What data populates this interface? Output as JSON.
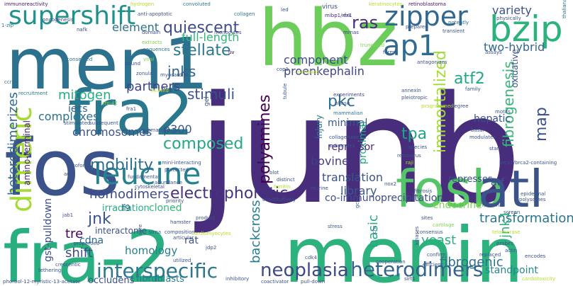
{
  "words": [
    {
      "text": "junb",
      "color": "#472d7b"
    },
    {
      "text": "fra-2",
      "color": "#29af7f"
    },
    {
      "text": "menin",
      "color": "#2db27d"
    },
    {
      "text": "hbz",
      "color": "#6ccd5a"
    },
    {
      "text": "men1",
      "color": "#2c728e"
    },
    {
      "text": "fos",
      "color": "#3b528b"
    },
    {
      "text": "fra2",
      "color": "#2a788e"
    },
    {
      "text": "fosb",
      "color": "#54c568"
    },
    {
      "text": "atl",
      "color": "#3b528b"
    },
    {
      "text": "bzip",
      "color": "#2db27d"
    },
    {
      "text": "zipper",
      "color": "#31688e"
    },
    {
      "text": "supershift",
      "color": "#21918c"
    },
    {
      "text": "dimeric",
      "color": "#a5db36"
    },
    {
      "text": "leucine",
      "color": "#26828e"
    },
    {
      "text": "ap1",
      "color": "#306a8e"
    },
    {
      "text": "heterodimers",
      "color": "#33638d"
    },
    {
      "text": "interspecific",
      "color": "#2a788e"
    },
    {
      "text": "neoplasia",
      "color": "#3e4989"
    },
    {
      "text": "quiescent",
      "color": "#3e4a89"
    },
    {
      "text": "stellate",
      "color": "#2a788e"
    },
    {
      "text": "ras",
      "color": "#472a7a"
    },
    {
      "text": "polyamines",
      "color": "#440154"
    },
    {
      "text": "heterodimerizes",
      "color": "#31688e"
    },
    {
      "text": "fibrogenesis",
      "color": "#37b878"
    },
    {
      "text": "immortalized",
      "color": "#a2da37"
    },
    {
      "text": "electrophoretic",
      "color": "#46327e"
    },
    {
      "text": "mobility",
      "color": "#2f6c8e"
    },
    {
      "text": "jnk",
      "color": "#3a548c"
    },
    {
      "text": "composed",
      "color": "#22a884"
    },
    {
      "text": "transformation",
      "color": "#2a768e"
    },
    {
      "text": "backcross",
      "color": "#287d8e"
    },
    {
      "text": "fibrogenic",
      "color": "#2c718e"
    },
    {
      "text": "homodimers",
      "color": "#3e4a89"
    },
    {
      "text": "tpa",
      "color": "#20a386"
    },
    {
      "text": "pkc",
      "color": "#2c718e"
    },
    {
      "text": "atf2",
      "color": "#22a785"
    },
    {
      "text": "map",
      "color": "#3b528b"
    },
    {
      "text": "jnk1",
      "color": "#2db27d"
    },
    {
      "text": "jnks",
      "color": "#32658e"
    },
    {
      "text": "stimuli",
      "color": "#3b528b"
    },
    {
      "text": "mitogen",
      "color": "#27ad81"
    },
    {
      "text": "partners",
      "color": "#414487"
    },
    {
      "text": "chromosomes",
      "color": "#3b528b"
    },
    {
      "text": "complexes",
      "color": "#2c728e"
    },
    {
      "text": "p300",
      "color": "#38588c"
    },
    {
      "text": "two-hybrid",
      "color": "#31678e"
    },
    {
      "text": "element",
      "color": "#2c728e"
    },
    {
      "text": "full-length",
      "color": "#32b67a"
    },
    {
      "text": "variety",
      "color": "#3b528b"
    },
    {
      "text": "component",
      "color": "#3e4989"
    },
    {
      "text": "proenkephalin",
      "color": "#414487"
    },
    {
      "text": "bovine",
      "color": "#433e85"
    },
    {
      "text": "translation",
      "color": "#3a538b"
    },
    {
      "text": "library",
      "color": "#38588c"
    },
    {
      "text": "yeast",
      "color": "#2ab07f"
    },
    {
      "text": "basic",
      "color": "#22a884"
    },
    {
      "text": "shift",
      "color": "#3e4a89"
    },
    {
      "text": "tre",
      "color": "#450559"
    },
    {
      "text": "homology",
      "color": "#277f8e"
    },
    {
      "text": "gst-pulldown",
      "color": "#3e4c8a"
    },
    {
      "text": "co-immunoprecipitation",
      "color": "#3e4c8a"
    },
    {
      "text": "iecs",
      "color": "#355f8d"
    },
    {
      "text": "minimal",
      "color": "#37598c"
    },
    {
      "text": "hepatic",
      "color": "#3b528b"
    },
    {
      "text": "proximal",
      "color": "#22a785"
    },
    {
      "text": "cdna",
      "color": "#306a8e"
    },
    {
      "text": "rat",
      "color": "#39568c"
    },
    {
      "text": "endocrine",
      "color": "#7fd34e"
    },
    {
      "text": "repressor",
      "color": "#482878"
    },
    {
      "text": "cloned",
      "color": "#35b779"
    },
    {
      "text": "irradiation",
      "color": "#27ad81"
    },
    {
      "text": "atf",
      "color": "#3b528b"
    },
    {
      "text": "represses",
      "color": "#3e4a89"
    },
    {
      "text": "injury",
      "color": "#2a788e"
    },
    {
      "text": "occludens",
      "color": "#3b528b"
    },
    {
      "text": "fibroblasts",
      "color": "#287d8e"
    },
    {
      "text": "standpoint",
      "color": "#23888e"
    },
    {
      "text": "interactome",
      "color": "#3b528b"
    },
    {
      "text": "f9",
      "color": "#355f8d"
    },
    {
      "text": "amino-terminal",
      "color": "#482475"
    },
    {
      "text": "keratinocytes",
      "color": "#b5de2b"
    },
    {
      "text": "retinoblastoma",
      "color": "#481467"
    },
    {
      "text": "immunoreactivity",
      "color": "#481467"
    },
    {
      "text": "hydrogen",
      "color": "#b5de2b"
    },
    {
      "text": "convoluted",
      "color": "#2a788e"
    },
    {
      "text": "led",
      "color": "#3b528b"
    },
    {
      "text": "virus",
      "color": "#3e4a89"
    },
    {
      "text": "mibp1/rfx1",
      "color": "#482878"
    },
    {
      "text": "erk",
      "color": "#3b528b"
    },
    {
      "text": "thaliana",
      "color": "#2c728e"
    },
    {
      "text": "physically",
      "color": "#3b528b"
    },
    {
      "text": "potently",
      "color": "#31688e"
    },
    {
      "text": "anti-apoptotic",
      "color": "#3b528b"
    },
    {
      "text": "collagen",
      "color": "#2a788e"
    },
    {
      "text": "oncogenesis",
      "color": "#3e4a89"
    },
    {
      "text": "1-zip",
      "color": "#287d8e"
    },
    {
      "text": "nafk",
      "color": "#3e4a89"
    },
    {
      "text": "domain",
      "color": "#3e4a89"
    },
    {
      "text": "monocytes",
      "color": "#3e4a89"
    },
    {
      "text": "mrnas",
      "color": "#414487"
    },
    {
      "text": "prepared",
      "color": "#3b528b"
    },
    {
      "text": "transient",
      "color": "#3b528b"
    },
    {
      "text": "extracts",
      "color": "#7fd34e"
    },
    {
      "text": "sequences",
      "color": "#2c728e"
    },
    {
      "text": "viral",
      "color": "#7fd34e"
    },
    {
      "text": "uv",
      "color": "#440154"
    },
    {
      "text": "truncated",
      "color": "#7fd34e"
    },
    {
      "text": "forms",
      "color": "#3e4a89"
    },
    {
      "text": "antagonizes",
      "color": "#3b528b"
    },
    {
      "text": "assays",
      "color": "#3b528b"
    },
    {
      "text": "oxidative",
      "color": "#3b528b"
    },
    {
      "text": "conserved",
      "color": "#2c728e"
    },
    {
      "text": "bound",
      "color": "#3b528b"
    },
    {
      "text": "zonula",
      "color": "#3b528b"
    },
    {
      "text": "myocardial",
      "color": "#3b528b"
    },
    {
      "text": "cop1",
      "color": "#3b528b"
    },
    {
      "text": "peroxide",
      "color": "#b5de2b"
    },
    {
      "text": "ccr4",
      "color": "#2c728e"
    },
    {
      "text": "3t3",
      "color": "#3b528b"
    },
    {
      "text": "located",
      "color": "#b5de2b"
    },
    {
      "text": "recruitment",
      "color": "#2a788e"
    },
    {
      "text": "fra1",
      "color": "#3b528b"
    },
    {
      "text": "zfp-42",
      "color": "#7fd34e"
    },
    {
      "text": "gel",
      "color": "#3b528b"
    },
    {
      "text": "experiments",
      "color": "#3e4a89"
    },
    {
      "text": "tubule",
      "color": "#3b528b"
    },
    {
      "text": "mammalian",
      "color": "#2c728e"
    },
    {
      "text": "phase",
      "color": "#3b528b"
    },
    {
      "text": "annexin",
      "color": "#3b528b"
    },
    {
      "text": "pleiotropic",
      "color": "#3b528b"
    },
    {
      "text": "programmed",
      "color": "#b5de2b"
    },
    {
      "text": "degree",
      "color": "#3b528b"
    },
    {
      "text": "family",
      "color": "#3b528b"
    },
    {
      "text": "motifs",
      "color": "#3b528b"
    },
    {
      "text": "basal",
      "color": "#3b528b"
    },
    {
      "text": "modulates",
      "color": "#3b528b"
    },
    {
      "text": "stimulated",
      "color": "#3b528b"
    },
    {
      "text": "subsequent",
      "color": "#3b528b"
    },
    {
      "text": "submandibular",
      "color": "#3b528b"
    },
    {
      "text": "collagenase",
      "color": "#3b528b"
    },
    {
      "text": "substrates",
      "color": "#3b528b"
    },
    {
      "text": "species",
      "color": "#3b528b"
    },
    {
      "text": "retrovirus",
      "color": "#3b528b"
    },
    {
      "text": "raji",
      "color": "#b5de2b"
    },
    {
      "text": "start",
      "color": "#3b528b"
    },
    {
      "text": "brca1/brca2-containing",
      "color": "#3b528b"
    },
    {
      "text": "blot",
      "color": "#3b528b"
    },
    {
      "text": "distinct",
      "color": "#3b528b"
    },
    {
      "text": "isoform",
      "color": "#3b528b"
    },
    {
      "text": "mini-interacting",
      "color": "#3b528b"
    },
    {
      "text": "protected",
      "color": "#3b528b"
    },
    {
      "text": "aug",
      "color": "#3b528b"
    },
    {
      "text": "fundamental",
      "color": "#3b528b"
    },
    {
      "text": "abundance",
      "color": "#3b528b"
    },
    {
      "text": "ferritin",
      "color": "#b5de2b"
    },
    {
      "text": "nox2",
      "color": "#3b528b"
    },
    {
      "text": "fibrosis",
      "color": "#3b528b"
    },
    {
      "text": "epidermal",
      "color": "#3b528b"
    },
    {
      "text": "polysomes",
      "color": "#3b528b"
    },
    {
      "text": "murine",
      "color": "#3b528b"
    },
    {
      "text": "gct",
      "color": "#3b528b"
    },
    {
      "text": "maximal",
      "color": "#3b528b"
    },
    {
      "text": "screen",
      "color": "#3b528b"
    },
    {
      "text": "cytoskeletal",
      "color": "#3b528b"
    },
    {
      "text": "constitutively",
      "color": "#3b528b"
    },
    {
      "text": "priority",
      "color": "#3b528b"
    },
    {
      "text": "jab1",
      "color": "#3b528b"
    },
    {
      "text": "core",
      "color": "#3b528b"
    },
    {
      "text": "sirna",
      "color": "#3b528b"
    },
    {
      "text": "composition",
      "color": "#3b528b"
    },
    {
      "text": "articular",
      "color": "#3b528b"
    },
    {
      "text": "stress",
      "color": "#3b528b"
    },
    {
      "text": "cartilage",
      "color": "#7fd34e"
    },
    {
      "text": "sites",
      "color": "#3b528b"
    },
    {
      "text": "consensus",
      "color": "#3b528b"
    },
    {
      "text": "telomerase",
      "color": "#b5de2b"
    },
    {
      "text": "properties",
      "color": "#3b528b"
    },
    {
      "text": "jdp2",
      "color": "#3b528b"
    },
    {
      "text": "chr",
      "color": "#3b528b"
    },
    {
      "text": "kinases",
      "color": "#3b528b"
    },
    {
      "text": "probes",
      "color": "#3b528b"
    },
    {
      "text": "actin",
      "color": "#3b528b"
    },
    {
      "text": "encodes",
      "color": "#3b528b"
    },
    {
      "text": "crescentic",
      "color": "#3b528b"
    },
    {
      "text": "utilized",
      "color": "#3b528b"
    },
    {
      "text": "tethering",
      "color": "#3b528b"
    },
    {
      "text": "cooperation",
      "color": "#3b528b"
    },
    {
      "text": "cdk4",
      "color": "#3b528b"
    },
    {
      "text": "confirm",
      "color": "#3b528b"
    },
    {
      "text": "replaced",
      "color": "#3b528b"
    },
    {
      "text": "efficient",
      "color": "#3b528b"
    },
    {
      "text": "cardiotoxicity",
      "color": "#b5de2b"
    },
    {
      "text": "phorbol-12-myristic-13-acetate",
      "color": "#3b528b"
    },
    {
      "text": "inhibitory",
      "color": "#3b528b"
    },
    {
      "text": "coactivator",
      "color": "#3b528b"
    },
    {
      "text": "pull-down",
      "color": "#3b528b"
    },
    {
      "text": "hamster",
      "color": "#3b528b"
    },
    {
      "text": "product",
      "color": "#3b528b"
    },
    {
      "text": "cardiomyocytes",
      "color": "#b5de2b"
    },
    {
      "text": "sirt1",
      "color": "#3b528b"
    }
  ]
}
